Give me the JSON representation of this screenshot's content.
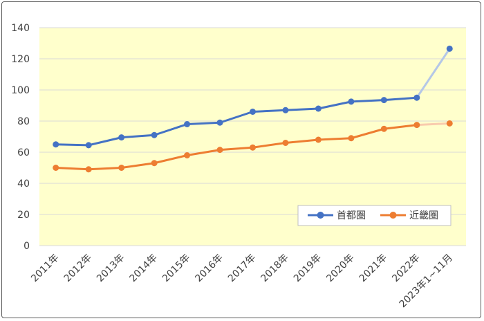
{
  "chart_data": {
    "type": "line",
    "categories": [
      "2011年",
      "2012年",
      "2013年",
      "2014年",
      "2015年",
      "2016年",
      "2017年",
      "2018年",
      "2019年",
      "2020年",
      "2021年",
      "2022年",
      "2023年1~11月"
    ],
    "series": [
      {
        "name": "首都圏",
        "color": "#4472C4",
        "last_segment_color": "#B4C7E7",
        "values": [
          65,
          64.5,
          69.5,
          71,
          78,
          79,
          86,
          87,
          88,
          92.5,
          93.5,
          95,
          126.5
        ]
      },
      {
        "name": "近畿圏",
        "color": "#ED7D31",
        "last_segment_color": "#F8CBAD",
        "values": [
          50,
          49,
          50,
          53,
          58,
          61.5,
          63,
          66,
          68,
          69,
          75,
          77.5,
          78.5
        ]
      }
    ],
    "ylim": [
      0,
      140
    ],
    "yticks": [
      0,
      20,
      40,
      60,
      80,
      100,
      120,
      140
    ],
    "ytick_labels": [
      "0",
      "20",
      "40",
      "60",
      "80",
      "100",
      "120",
      "140"
    ],
    "grid": true,
    "plot_background": "#FFFFCC",
    "gridline_color": "#D9D9D9",
    "legend_placement": "bottom-right"
  }
}
